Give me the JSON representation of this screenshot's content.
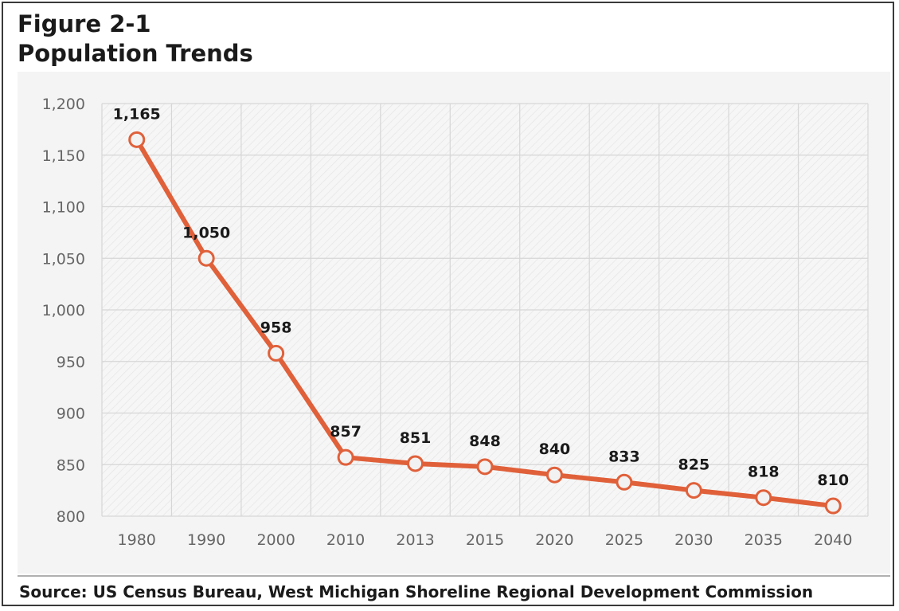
{
  "header": {
    "figure_label": "Figure 2-1",
    "title": "Population Trends"
  },
  "footer": {
    "source": "Source: US Census Bureau, West Michigan Shoreline Regional Development Commission"
  },
  "chart_data": {
    "type": "line",
    "title": "Population Trends",
    "xlabel": "",
    "ylabel": "",
    "categories": [
      "1980",
      "1990",
      "2000",
      "2010",
      "2013",
      "2015",
      "2020",
      "2025",
      "2030",
      "2035",
      "2040"
    ],
    "values": [
      1165,
      1050,
      958,
      857,
      851,
      848,
      840,
      833,
      825,
      818,
      810
    ],
    "data_labels": [
      "1,165",
      "1,050",
      "958",
      "857",
      "851",
      "848",
      "840",
      "833",
      "825",
      "818",
      "810"
    ],
    "y_ticks": [
      "800",
      "850",
      "900",
      "950",
      "1,000",
      "1,050",
      "1,100",
      "1,150",
      "1,200"
    ],
    "y_tick_values": [
      800,
      850,
      900,
      950,
      1000,
      1050,
      1100,
      1150,
      1200
    ],
    "ylim": [
      800,
      1200
    ],
    "grid": true,
    "legend": "none",
    "line_color": "#e0603a",
    "marker_fill": "#f2f2f2",
    "grid_color": "#d6d6d6"
  }
}
